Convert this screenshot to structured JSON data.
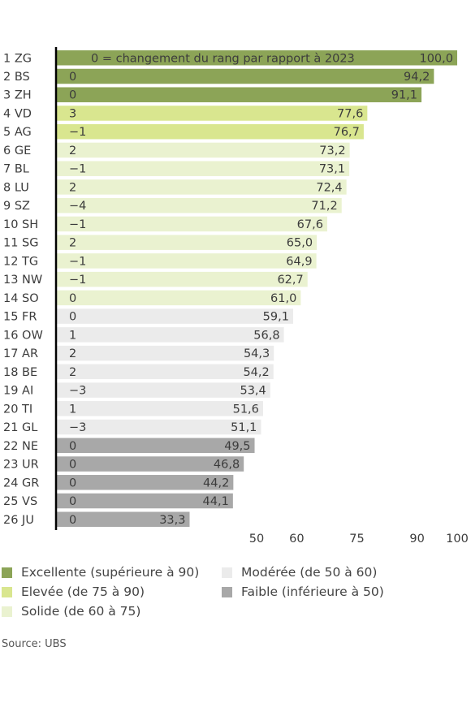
{
  "chart_data": {
    "type": "bar",
    "orientation": "horizontal",
    "header_note": "0 = changement du rang par rapport à 2023",
    "categories": [
      "1 ZG",
      "2 BS",
      "3 ZH",
      "4 VD",
      "5 AG",
      "6 GE",
      "7 BL",
      "8 LU",
      "9 SZ",
      "10 SH",
      "11 SG",
      "12 TG",
      "13 NW",
      "14 SO",
      "15 FR",
      "16 OW",
      "17 AR",
      "18 BE",
      "19 AI",
      "20 TI",
      "21 GL",
      "22 NE",
      "23 UR",
      "24 GR",
      "25 VS",
      "26 JU"
    ],
    "values": [
      100.0,
      94.2,
      91.1,
      77.6,
      76.7,
      73.2,
      73.1,
      72.4,
      71.2,
      67.6,
      65.0,
      64.9,
      62.7,
      61.0,
      59.1,
      56.8,
      54.3,
      54.2,
      53.4,
      51.6,
      51.1,
      49.5,
      46.8,
      44.2,
      44.1,
      33.3
    ],
    "value_labels": [
      "100,0",
      "94,2",
      "91,1",
      "77,6",
      "76,7",
      "73,2",
      "73,1",
      "72,4",
      "71,2",
      "67,6",
      "65,0",
      "64,9",
      "62,7",
      "61,0",
      "59,1",
      "56,8",
      "54,3",
      "54,2",
      "53,4",
      "51,6",
      "51,1",
      "49,5",
      "46,8",
      "44,2",
      "44,1",
      "33,3"
    ],
    "rank_changes": [
      "",
      "0",
      "0",
      "3",
      "−1",
      "2",
      "−1",
      "2",
      "−4",
      "−1",
      "2",
      "−1",
      "−1",
      "0",
      "0",
      "1",
      "2",
      "2",
      "−3",
      "1",
      "−3",
      "0",
      "0",
      "0",
      "0",
      "0"
    ],
    "xlim": [
      0,
      100
    ],
    "xticks": [
      50,
      60,
      75,
      90,
      100
    ],
    "grid": false,
    "categories_colors": {
      "excellente": "#8ca457",
      "elevee": "#d9e68f",
      "solide": "#eaf2d0",
      "moderee": "#ebebeb",
      "faible": "#a8a8a8"
    },
    "legend": [
      {
        "label": "Excellente (supérieure à 90)",
        "color": "#8ca457"
      },
      {
        "label": "Elevée (de 75 à 90)",
        "color": "#d9e68f"
      },
      {
        "label": "Solide (de 60 à 75)",
        "color": "#eaf2d0"
      },
      {
        "label": "Modérée (de 50 à 60)",
        "color": "#ebebeb"
      },
      {
        "label": "Faible (inférieure à 50)",
        "color": "#a8a8a8"
      }
    ]
  },
  "source": "Source: UBS"
}
